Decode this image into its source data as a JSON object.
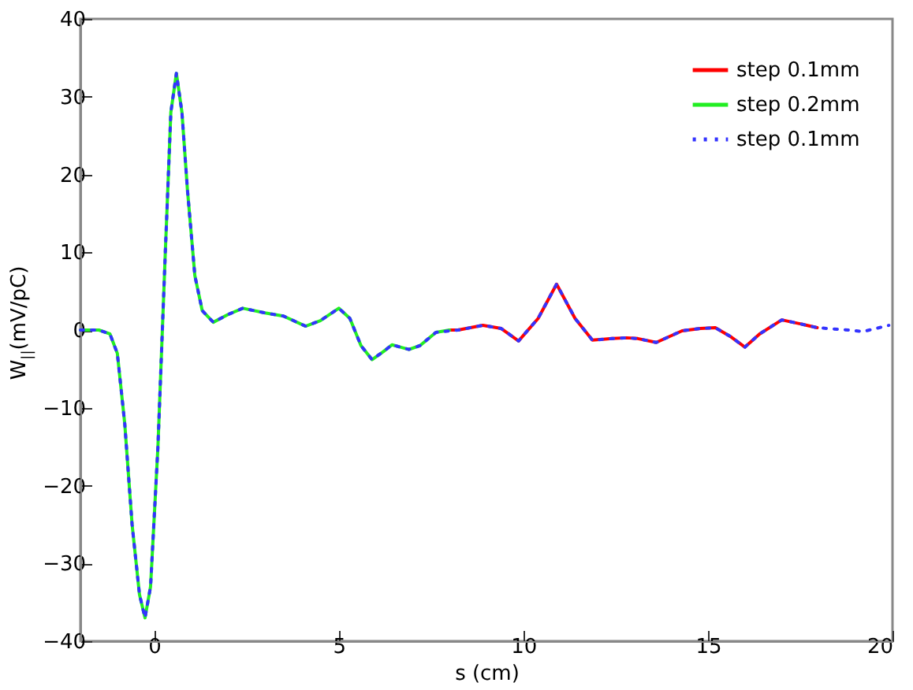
{
  "chart_data": {
    "type": "line",
    "xlabel": "s (cm)",
    "ylabel": "W$_{||}$(mV/pC)",
    "xlim": [
      -2,
      20
    ],
    "xticks": [
      0,
      5,
      10,
      15,
      20
    ],
    "ylim": [
      -40,
      40
    ],
    "yticks": [
      -40,
      -30,
      -20,
      -10,
      0,
      10,
      20,
      30,
      40
    ],
    "grid": false,
    "legend": "top right",
    "marker": "none",
    "series": [
      {
        "name": "step 0.1mm",
        "color": "#ff0000",
        "line_style": "solid",
        "x": [
          8,
          8.23,
          8.9,
          9.4,
          9.87,
          10.4,
          10.9,
          11.4,
          11.87,
          12.4,
          12.8,
          13.1,
          13.6,
          14.3,
          14.8,
          15.2,
          15.6,
          16.0,
          16.4,
          17.0,
          17.5,
          17.96
        ],
        "values": [
          0,
          0,
          0.6,
          0.2,
          -1.4,
          1.5,
          5.9,
          1.5,
          -1.3,
          -1.1,
          -1,
          -1.1,
          -1.6,
          -0.1,
          0.2,
          0.3,
          -0.8,
          -2.2,
          -0.5,
          1.3,
          0.8,
          0.3
        ]
      },
      {
        "name": "step 0.2mm",
        "color": "#22ee22",
        "line_style": "solid",
        "x": [
          -2,
          -1.5,
          -1.2,
          -1,
          -0.8,
          -0.6,
          -0.4,
          -0.25,
          -0.1,
          0.1,
          0.3,
          0.45,
          0.6,
          0.75,
          0.9,
          1.1,
          1.3,
          1.6,
          2,
          2.4,
          3,
          3.5,
          4.1,
          4.5,
          5,
          5.3,
          5.6,
          5.9,
          6.2,
          6.44,
          6.9,
          7.2,
          7.63,
          8
        ],
        "values": [
          0,
          0,
          -0.5,
          -3,
          -12,
          -25,
          -34,
          -37,
          -33,
          -15,
          10,
          28,
          33,
          28,
          18,
          7,
          2.5,
          1,
          2,
          2.8,
          2.2,
          1.8,
          0.5,
          1.2,
          2.8,
          1.5,
          -2,
          -3.8,
          -2.8,
          -1.9,
          -2.5,
          -2,
          -0.3,
          0
        ]
      },
      {
        "name": "step 0.1mm",
        "color": "#3333ff",
        "line_style": "dotted",
        "x": [
          -2,
          -1.5,
          -1.2,
          -1,
          -0.8,
          -0.6,
          -0.4,
          -0.25,
          -0.1,
          0.1,
          0.3,
          0.45,
          0.6,
          0.75,
          0.9,
          1.1,
          1.3,
          1.6,
          2,
          2.4,
          3,
          3.5,
          4.1,
          4.5,
          5,
          5.3,
          5.6,
          5.9,
          6.2,
          6.44,
          6.9,
          7.2,
          7.63,
          8.23,
          8.9,
          9.4,
          9.87,
          10.4,
          10.9,
          11.4,
          11.87,
          12.4,
          12.8,
          13.1,
          13.6,
          14.3,
          14.8,
          15.2,
          15.6,
          16.0,
          16.4,
          17.0,
          17.5,
          17.96,
          18.8,
          19.2,
          19.9
        ],
        "values": [
          0,
          0,
          -0.5,
          -3,
          -12,
          -25,
          -34,
          -37,
          -33,
          -15,
          10,
          28,
          33,
          28,
          18,
          7,
          2.5,
          1,
          2,
          2.8,
          2.2,
          1.8,
          0.5,
          1.2,
          2.8,
          1.5,
          -2,
          -3.8,
          -2.8,
          -1.9,
          -2.5,
          -2,
          -0.3,
          0,
          0.6,
          0.2,
          -1.4,
          1.5,
          5.9,
          1.5,
          -1.3,
          -1.1,
          -1,
          -1.1,
          -1.6,
          -0.1,
          0.2,
          0.3,
          -0.8,
          -2.2,
          -0.5,
          1.3,
          0.8,
          0.3,
          0,
          -0.2,
          0.6
        ]
      }
    ]
  }
}
